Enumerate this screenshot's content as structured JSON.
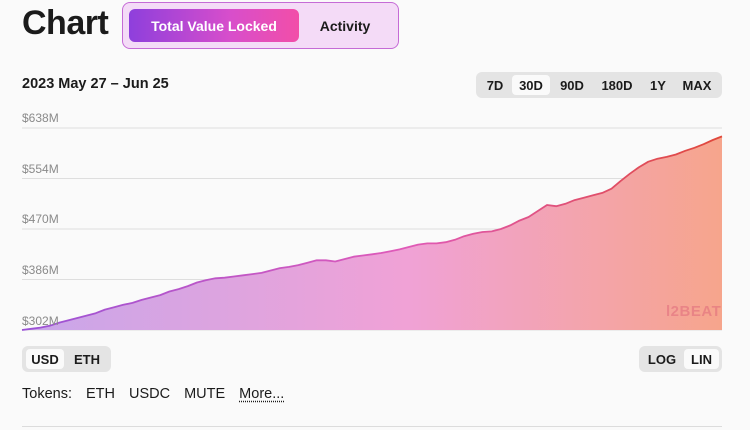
{
  "header": {
    "title": "Chart",
    "tabs": [
      {
        "label": "Total Value Locked",
        "active": true
      },
      {
        "label": "Activity",
        "active": false
      }
    ]
  },
  "date_range": "2023 May 27 – Jun 25",
  "range_buttons": [
    {
      "label": "7D",
      "active": false
    },
    {
      "label": "30D",
      "active": true
    },
    {
      "label": "90D",
      "active": false
    },
    {
      "label": "180D",
      "active": false
    },
    {
      "label": "1Y",
      "active": false
    },
    {
      "label": "MAX",
      "active": false
    }
  ],
  "watermark": "l2BEAT",
  "unit_toggle": [
    {
      "label": "USD",
      "active": true
    },
    {
      "label": "ETH",
      "active": false
    }
  ],
  "scale_toggle": [
    {
      "label": "LOG",
      "active": false
    },
    {
      "label": "LIN",
      "active": true
    }
  ],
  "tokens": {
    "label": "Tokens:",
    "items": [
      "ETH",
      "USDC",
      "MUTE"
    ],
    "more": "More..."
  },
  "colors": {
    "line_start": "#9a52d6",
    "line_mid": "#e05ab8",
    "line_end": "#e0483a",
    "fill_start": "#c8a6ea",
    "fill_mid": "#f0a2d6",
    "fill_end": "#f6a58c"
  },
  "chart_data": {
    "type": "area",
    "ytick_labels": [
      "$638M",
      "$554M",
      "$470M",
      "$386M",
      "$302M"
    ],
    "yticks": [
      638,
      554,
      470,
      386,
      302
    ],
    "ylim": [
      302,
      638
    ],
    "x_start": "2023-05-27",
    "x_end": "2023-06-25",
    "series": [
      {
        "values": [
          302,
          304,
          306,
          309,
          314,
          318,
          322,
          326,
          330,
          336,
          340,
          344,
          347,
          352,
          356,
          360,
          366,
          370,
          375,
          381,
          385,
          388,
          389,
          391,
          393,
          395,
          397,
          401,
          405,
          407,
          410,
          414,
          418,
          418,
          416,
          420,
          424,
          426,
          428,
          430,
          433,
          436,
          440,
          444,
          446,
          446,
          448,
          452,
          458,
          462,
          465,
          466,
          470,
          476,
          484,
          490,
          500,
          510,
          508,
          512,
          518,
          522,
          526,
          530,
          537,
          550,
          562,
          573,
          582,
          587,
          590,
          594,
          600,
          605,
          611,
          618,
          624
        ]
      }
    ],
    "grid": true
  }
}
